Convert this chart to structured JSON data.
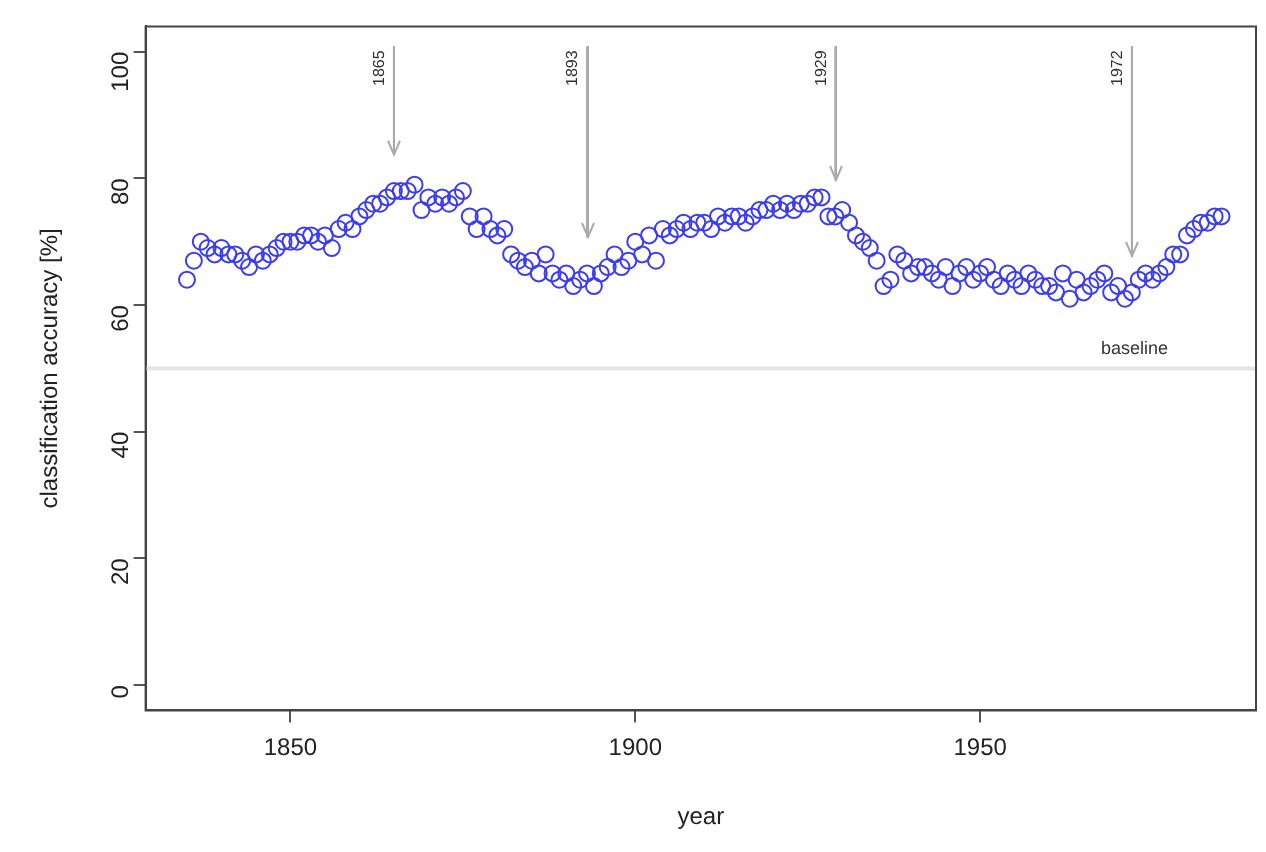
{
  "chart_data": {
    "type": "scatter",
    "xlabel": "year",
    "ylabel": "classification accuracy [%]",
    "x": [
      1835,
      1836,
      1837,
      1838,
      1839,
      1840,
      1841,
      1842,
      1843,
      1844,
      1845,
      1846,
      1847,
      1848,
      1849,
      1850,
      1851,
      1852,
      1853,
      1854,
      1855,
      1856,
      1857,
      1858,
      1859,
      1860,
      1861,
      1862,
      1863,
      1864,
      1865,
      1866,
      1867,
      1868,
      1869,
      1870,
      1871,
      1872,
      1873,
      1874,
      1875,
      1876,
      1877,
      1878,
      1879,
      1880,
      1881,
      1882,
      1883,
      1884,
      1885,
      1886,
      1887,
      1888,
      1889,
      1890,
      1891,
      1892,
      1893,
      1894,
      1895,
      1896,
      1897,
      1898,
      1899,
      1900,
      1901,
      1902,
      1903,
      1904,
      1905,
      1906,
      1907,
      1908,
      1909,
      1910,
      1911,
      1912,
      1913,
      1914,
      1915,
      1916,
      1917,
      1918,
      1919,
      1920,
      1921,
      1922,
      1923,
      1924,
      1925,
      1926,
      1927,
      1928,
      1929,
      1930,
      1931,
      1932,
      1933,
      1934,
      1935,
      1936,
      1937,
      1938,
      1939,
      1940,
      1941,
      1942,
      1943,
      1944,
      1945,
      1946,
      1947,
      1948,
      1949,
      1950,
      1951,
      1952,
      1953,
      1954,
      1955,
      1956,
      1957,
      1958,
      1959,
      1960,
      1961,
      1962,
      1963,
      1964,
      1965,
      1966,
      1967,
      1968,
      1969,
      1970,
      1971,
      1972,
      1973,
      1974,
      1975,
      1976,
      1977,
      1978,
      1979,
      1980,
      1981,
      1982,
      1983,
      1984,
      1985
    ],
    "series": [
      {
        "color": "#3c3cf0",
        "values": [
          64,
          67,
          70,
          69,
          68,
          69,
          68,
          68,
          67,
          66,
          68,
          67,
          68,
          69,
          70,
          70,
          70,
          71,
          71,
          70,
          71,
          69,
          72,
          73,
          72,
          74,
          75,
          76,
          76,
          77,
          78,
          78,
          78,
          79,
          75,
          77,
          76,
          77,
          76,
          77,
          78,
          74,
          72,
          74,
          72,
          71,
          72,
          68,
          67,
          66,
          67,
          65,
          68,
          65,
          64,
          65,
          63,
          64,
          65,
          63,
          65,
          66,
          68,
          66,
          67,
          70,
          68,
          71,
          67,
          72,
          71,
          72,
          73,
          72,
          73,
          73,
          72,
          74,
          73,
          74,
          74,
          73,
          74,
          75,
          75,
          76,
          75,
          76,
          75,
          76,
          76,
          77,
          77,
          74,
          74,
          75,
          73,
          71,
          70,
          69,
          67,
          63,
          64,
          68,
          67,
          65,
          66,
          66,
          65,
          64,
          66,
          63,
          65,
          66,
          64,
          65,
          66,
          64,
          63,
          65,
          64,
          63,
          65,
          64,
          63,
          63,
          62,
          65,
          61,
          64,
          62,
          63,
          64,
          65,
          62,
          63,
          61,
          62,
          64,
          65,
          64,
          65,
          66,
          68,
          68,
          71,
          72,
          73,
          73,
          74,
          74
        ]
      }
    ],
    "xlim": [
      1829,
      1990
    ],
    "xticks": [
      1850,
      1900,
      1950
    ],
    "ylim": [
      -4,
      104
    ],
    "yticks": [
      0,
      20,
      40,
      60,
      80,
      100
    ],
    "grid": false,
    "legend": false,
    "marker": "circle",
    "ref_lines": [
      {
        "axis": "y",
        "value": 50,
        "label": "baseline",
        "color": "#e4e4e4"
      },
      {
        "axis": "x",
        "value": 1865,
        "label": "1865",
        "color": "#aaaaaa"
      },
      {
        "axis": "x",
        "value": 1893,
        "label": "1893",
        "color": "#aaaaaa"
      },
      {
        "axis": "x",
        "value": 1929,
        "label": "1929",
        "color": "#aaaaaa"
      },
      {
        "axis": "x",
        "value": 1972,
        "label": "1972",
        "color": "#aaaaaa"
      }
    ]
  }
}
